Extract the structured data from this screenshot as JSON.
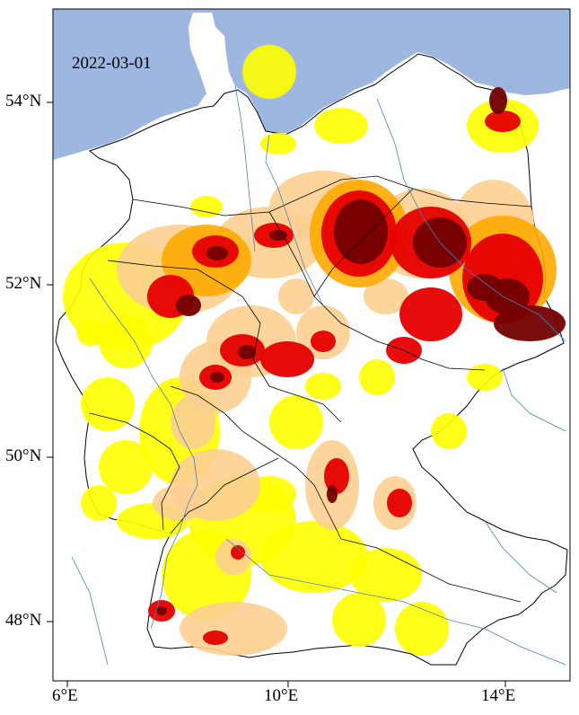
{
  "map": {
    "date_label": "2022-03-01",
    "lat_ticks": [
      {
        "label": "54°N",
        "lat": 54
      },
      {
        "label": "52°N",
        "lat": 52
      },
      {
        "label": "50°N",
        "lat": 50
      },
      {
        "label": "48°N",
        "lat": 48
      }
    ],
    "lon_ticks": [
      {
        "label": "6°E",
        "lon": 6
      },
      {
        "label": "10°E",
        "lon": 10
      },
      {
        "label": "14°E",
        "lon": 14
      }
    ],
    "extent": {
      "lon_min": 5.85,
      "lon_max": 15.2,
      "lat_min": 47.25,
      "lat_max": 55.05
    },
    "colors": {
      "sea": "#9db7e0",
      "land": "#ffffff",
      "border": "#000000",
      "river": "#4d7fb0",
      "class_1": "#ffff00",
      "class_2": "#fccf91",
      "class_3": "#ffaa00",
      "class_4": "#e60000",
      "class_5": "#730000"
    }
  }
}
